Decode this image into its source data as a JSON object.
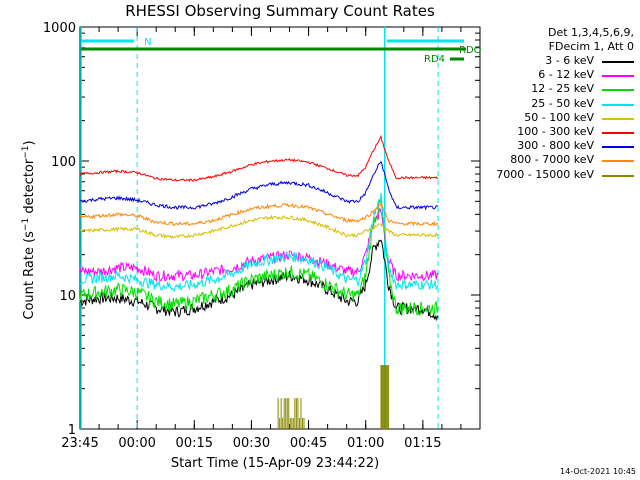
{
  "chart_data": {
    "type": "line",
    "title": "RHESSI Observing Summary Count Rates",
    "ylabel": "Count Rate (s⁻¹ detector⁻¹)",
    "xlabel": "Start Time (15-Apr-09 23:44:22)",
    "y_scale": "log",
    "ylim": [
      1,
      1000
    ],
    "y_ticks": [
      "1",
      "10",
      "100",
      "1000"
    ],
    "x_ticks": [
      "23:45",
      "00:00",
      "00:15",
      "00:30",
      "00:45",
      "01:00",
      "01:15"
    ],
    "x_range_minutes": [
      -15,
      90
    ],
    "x": [
      "23:45",
      "23:50",
      "23:55",
      "00:00",
      "00:05",
      "00:10",
      "00:15",
      "00:20",
      "00:25",
      "00:30",
      "00:35",
      "00:40",
      "00:45",
      "00:50",
      "00:55",
      "00:58",
      "01:00",
      "01:02",
      "01:04",
      "01:06",
      "01:08",
      "01:10",
      "01:15",
      "01:19"
    ],
    "series": [
      {
        "name": "3 - 6 keV",
        "color": "#000000",
        "values": [
          9,
          9.5,
          9.5,
          9,
          8,
          7.5,
          8,
          9,
          10,
          12,
          13,
          14,
          13,
          11,
          9,
          9,
          12,
          22,
          27,
          12,
          8,
          8,
          8,
          7
        ]
      },
      {
        "name": "6 - 12 keV",
        "color": "#ff00ff",
        "values": [
          15,
          15,
          16,
          16,
          14,
          14,
          14,
          15,
          16,
          18,
          19,
          20,
          19,
          17,
          15,
          15,
          20,
          35,
          42,
          18,
          14,
          14,
          14,
          14
        ]
      },
      {
        "name": "12 - 25 keV",
        "color": "#00dd00",
        "values": [
          10,
          10.5,
          11,
          10.5,
          9,
          8.5,
          9,
          10,
          11,
          13,
          14,
          15,
          14,
          12,
          10,
          10,
          14,
          35,
          50,
          14,
          8,
          8,
          8,
          8
        ]
      },
      {
        "name": "25 - 50 keV",
        "color": "#00e5ee",
        "values": [
          13,
          13.5,
          14,
          13,
          12,
          11.5,
          12,
          13,
          14.5,
          17,
          18.5,
          19.5,
          18.5,
          16,
          13,
          13,
          18,
          38,
          55,
          16,
          12,
          12,
          12,
          12
        ]
      },
      {
        "name": "50 - 100 keV",
        "color": "#d4c000",
        "values": [
          30,
          30.5,
          31,
          31,
          28,
          27,
          28,
          30,
          33,
          36,
          38,
          38,
          36,
          32,
          28,
          28,
          30,
          32,
          34,
          30,
          28,
          28,
          28,
          28
        ]
      },
      {
        "name": "100 - 300 keV",
        "color": "#ff0000",
        "values": [
          80,
          82,
          84,
          82,
          74,
          72,
          72,
          76,
          84,
          94,
          100,
          102,
          98,
          88,
          78,
          78,
          90,
          120,
          150,
          100,
          75,
          75,
          75,
          75
        ]
      },
      {
        "name": "300 - 800 keV",
        "color": "#0000dd",
        "values": [
          50,
          52,
          53,
          51,
          47,
          45,
          45,
          48,
          54,
          62,
          67,
          69,
          66,
          58,
          50,
          50,
          58,
          78,
          100,
          62,
          45,
          45,
          45,
          45
        ]
      },
      {
        "name": "800 - 7000 keV",
        "color": "#ff8800",
        "values": [
          38,
          39,
          40,
          39,
          35,
          34,
          34,
          36,
          40,
          44,
          46,
          47,
          45,
          40,
          36,
          36,
          38,
          42,
          48,
          36,
          34,
          34,
          34,
          34
        ]
      },
      {
        "name": "7000 - 15000 keV",
        "color": "#888800",
        "values": [
          1,
          1,
          1,
          1,
          1,
          1,
          1,
          1,
          1,
          1,
          1,
          1,
          1,
          1,
          1,
          1,
          1,
          1,
          1,
          1,
          1,
          1,
          1,
          1
        ]
      }
    ],
    "spikes_7000_15000": {
      "range": [
        "00:37",
        "00:44"
      ],
      "level": 1.7
    },
    "spike_7000_peak": {
      "range": [
        "01:04",
        "01:06"
      ],
      "level": 3
    },
    "annotations": {
      "night_label": "N",
      "saa_label": "RDO",
      "rd4_label": "RD4",
      "night_boundaries": [
        "00:00",
        "01:19"
      ],
      "flare_marker": "01:05"
    }
  },
  "legend": {
    "header_line1": "Det 1,3,4,5,6,9,",
    "header_line2": "FDecim 1, Att 0"
  },
  "footer": {
    "date_stamp": "14-Oct-2021 10:45"
  }
}
